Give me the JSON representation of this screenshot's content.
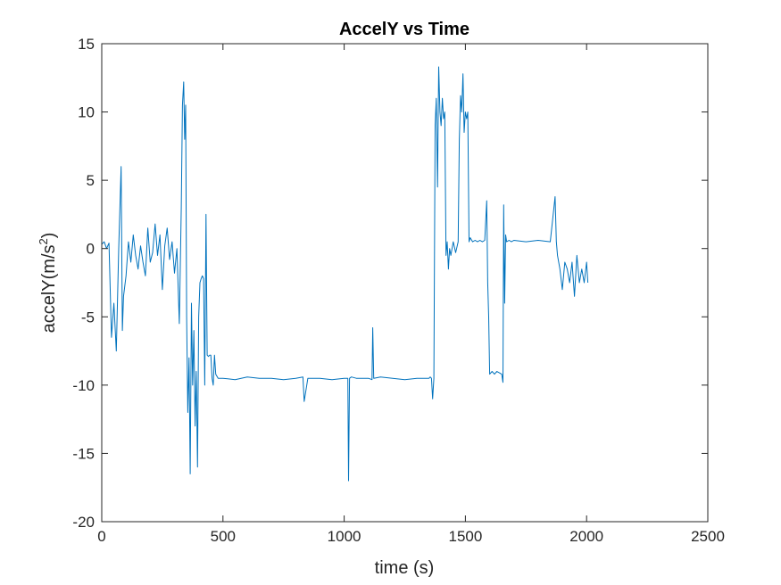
{
  "chart_data": {
    "type": "line",
    "title": "AccelY vs Time",
    "xlabel": "time (s)",
    "ylabel_main": "accelY(m/s",
    "ylabel_sup": "2",
    "ylabel_close": ")",
    "xlim": [
      0,
      2500
    ],
    "ylim": [
      -20,
      15
    ],
    "xticks": [
      0,
      500,
      1000,
      1500,
      2000,
      2500
    ],
    "yticks": [
      -20,
      -15,
      -10,
      -5,
      0,
      5,
      10,
      15
    ],
    "xtick_labels": [
      "0",
      "500",
      "1000",
      "1500",
      "2000",
      "2500"
    ],
    "ytick_labels": [
      "-20",
      "-15",
      "-10",
      "-5",
      "0",
      "5",
      "10",
      "15"
    ],
    "grid": false,
    "series": [
      {
        "color": "#0072BD",
        "x": [
          0,
          10,
          20,
          30,
          40,
          50,
          60,
          70,
          80,
          85,
          90,
          100,
          110,
          120,
          130,
          140,
          150,
          160,
          170,
          180,
          190,
          200,
          210,
          220,
          230,
          240,
          250,
          260,
          270,
          280,
          290,
          300,
          310,
          320,
          328,
          333,
          338,
          342,
          346,
          350,
          355,
          360,
          365,
          370,
          375,
          380,
          385,
          390,
          395,
          400,
          405,
          410,
          415,
          420,
          425,
          430,
          435,
          440,
          445,
          450,
          455,
          460,
          465,
          470,
          480,
          500,
          550,
          600,
          650,
          700,
          750,
          800,
          830,
          835,
          850,
          900,
          950,
          1000,
          1015,
          1018,
          1022,
          1030,
          1050,
          1100,
          1115,
          1118,
          1122,
          1150,
          1200,
          1250,
          1300,
          1350,
          1355,
          1360,
          1365,
          1370,
          1375,
          1380,
          1385,
          1390,
          1395,
          1400,
          1405,
          1410,
          1415,
          1420,
          1425,
          1430,
          1435,
          1440,
          1450,
          1460,
          1470,
          1475,
          1480,
          1485,
          1490,
          1495,
          1500,
          1505,
          1510,
          1515,
          1520,
          1530,
          1540,
          1550,
          1560,
          1570,
          1580,
          1588,
          1592,
          1596,
          1600,
          1610,
          1620,
          1630,
          1640,
          1650,
          1655,
          1658,
          1662,
          1666,
          1670,
          1680,
          1690,
          1700,
          1750,
          1800,
          1850,
          1870,
          1875,
          1880,
          1890,
          1900,
          1910,
          1920,
          1930,
          1940,
          1950,
          1960,
          1970,
          1980,
          1990,
          2000,
          2005
        ],
        "y": [
          0.3,
          0.5,
          0.0,
          0.4,
          -6.5,
          -4.0,
          -7.5,
          0.0,
          6.0,
          -6.0,
          -3.5,
          -2.0,
          0.5,
          -1.0,
          1.0,
          -0.5,
          -1.5,
          0.2,
          -1.0,
          -2.0,
          1.5,
          -1.0,
          -0.3,
          1.8,
          -0.5,
          1.0,
          -3.0,
          0.2,
          1.5,
          -0.8,
          0.5,
          -1.8,
          0.0,
          -5.5,
          3.0,
          10.5,
          12.2,
          8.0,
          10.5,
          -5.0,
          -12.0,
          -8.0,
          -16.5,
          -4.0,
          -10.0,
          -6.0,
          -13.0,
          -9.0,
          -16.0,
          -5.0,
          -2.5,
          -2.2,
          -2.0,
          -2.2,
          -10.0,
          2.5,
          -7.8,
          -7.9,
          -7.8,
          -7.8,
          -9.5,
          -10.0,
          -7.8,
          -9.2,
          -9.5,
          -9.5,
          -9.6,
          -9.4,
          -9.5,
          -9.5,
          -9.6,
          -9.5,
          -9.4,
          -11.2,
          -9.5,
          -9.5,
          -9.6,
          -9.5,
          -9.5,
          -17.0,
          -9.5,
          -9.4,
          -9.5,
          -9.5,
          -9.6,
          -5.8,
          -9.5,
          -9.4,
          -9.5,
          -9.6,
          -9.5,
          -9.5,
          -9.4,
          -9.5,
          -11.0,
          -9.5,
          9.0,
          11.0,
          4.5,
          13.3,
          10.0,
          9.0,
          11.0,
          9.5,
          10.0,
          -0.5,
          0.5,
          -1.5,
          0.0,
          -0.5,
          0.5,
          -0.3,
          0.5,
          8.0,
          11.2,
          10.0,
          12.8,
          8.5,
          10.0,
          9.5,
          10.0,
          0.5,
          0.8,
          0.5,
          0.6,
          0.5,
          0.6,
          0.5,
          0.6,
          3.5,
          -2.5,
          -5.0,
          -9.2,
          -9.0,
          -9.2,
          -9.0,
          -9.1,
          -9.2,
          -9.8,
          3.2,
          -4.0,
          1.0,
          0.5,
          0.6,
          0.5,
          0.6,
          0.5,
          0.6,
          0.5,
          3.8,
          0.5,
          -0.5,
          -1.5,
          -3.0,
          -1.0,
          -1.5,
          -2.5,
          -1.0,
          -3.5,
          -0.5,
          -2.5,
          -1.5,
          -2.5,
          -1.0,
          -2.5
        ]
      }
    ]
  }
}
